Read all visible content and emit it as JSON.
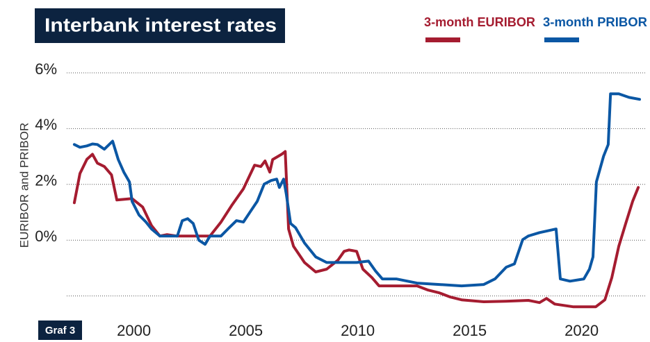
{
  "chart_data": {
    "type": "line",
    "title": "Interbank interest rates",
    "y_label": "EURIBOR and PRIBOR",
    "badge": "Graf 3",
    "xlim": [
      1997,
      2022.9
    ],
    "xticks": [
      2000,
      2005,
      2010,
      2015,
      2020
    ],
    "ylim": [
      -2.5,
      6
    ],
    "yticks": [
      {
        "value": -2,
        "label": null
      },
      {
        "value": 0,
        "label": "0%"
      },
      {
        "value": 2,
        "label": "2%"
      },
      {
        "value": 4,
        "label": "4%"
      },
      {
        "value": 6,
        "label": "6%"
      }
    ],
    "grid": true,
    "legend": "top-right",
    "series": [
      {
        "name": "3-month EURIBOR",
        "color": "#a51c30",
        "x": [
          1997.34,
          1997.59,
          1997.9,
          1998.15,
          1998.37,
          1998.68,
          1999.0,
          1999.24,
          1999.92,
          2000.39,
          2000.79,
          2001.16,
          2001.48,
          2001.91,
          2002.9,
          2003.4,
          2003.89,
          2004.39,
          2004.89,
          2005.39,
          2005.67,
          2005.86,
          2006.07,
          2006.2,
          2006.6,
          2006.76,
          2006.91,
          2007.13,
          2007.62,
          2008.12,
          2008.61,
          2009.11,
          2009.39,
          2009.61,
          2009.95,
          2010.23,
          2010.63,
          2010.95,
          2011.66,
          2012.65,
          2013.15,
          2013.65,
          2014.14,
          2014.64,
          2015.63,
          2016.63,
          2017.62,
          2018.12,
          2018.43,
          2018.8,
          2019.64,
          2020.63,
          2021.04,
          2021.35,
          2021.66,
          2021.97,
          2022.28,
          2022.53
        ],
        "values": [
          1.34,
          2.39,
          2.9,
          3.08,
          2.76,
          2.64,
          2.34,
          1.44,
          1.49,
          1.19,
          0.52,
          0.15,
          0.2,
          0.15,
          0.15,
          0.15,
          0.65,
          1.27,
          1.84,
          2.69,
          2.64,
          2.84,
          2.44,
          2.89,
          3.08,
          3.18,
          0.4,
          -0.22,
          -0.8,
          -1.14,
          -1.04,
          -0.72,
          -0.4,
          -0.35,
          -0.4,
          -1.04,
          -1.34,
          -1.64,
          -1.64,
          -1.64,
          -1.79,
          -1.89,
          -2.04,
          -2.14,
          -2.21,
          -2.19,
          -2.16,
          -2.24,
          -2.09,
          -2.29,
          -2.39,
          -2.39,
          -2.14,
          -1.34,
          -0.22,
          0.6,
          1.39,
          1.89
        ]
      },
      {
        "name": "3-month PRIBOR",
        "color": "#0b57a4",
        "x": [
          1997.34,
          1997.59,
          1997.9,
          1998.15,
          1998.37,
          1998.68,
          1999.05,
          1999.3,
          1999.55,
          1999.8,
          1999.92,
          2000.23,
          2000.54,
          2000.79,
          2001.16,
          2001.94,
          2002.16,
          2002.4,
          2002.65,
          2002.9,
          2003.18,
          2003.4,
          2003.89,
          2004.2,
          2004.58,
          2004.89,
          2005.2,
          2005.51,
          2005.82,
          2006.13,
          2006.38,
          2006.5,
          2006.69,
          2006.81,
          2007.0,
          2007.22,
          2007.62,
          2008.12,
          2008.61,
          2009.24,
          2009.95,
          2010.48,
          2010.79,
          2011.1,
          2011.72,
          2012.65,
          2013.65,
          2014.64,
          2015.63,
          2016.13,
          2016.63,
          2017.0,
          2017.37,
          2017.62,
          2018.12,
          2018.86,
          2019.05,
          2019.48,
          2020.1,
          2020.35,
          2020.51,
          2020.66,
          2020.98,
          2021.19,
          2021.29,
          2021.66,
          2022.12,
          2022.59
        ],
        "values": [
          3.43,
          3.33,
          3.38,
          3.45,
          3.43,
          3.26,
          3.55,
          2.89,
          2.44,
          2.09,
          1.39,
          0.9,
          0.65,
          0.4,
          0.15,
          0.15,
          0.7,
          0.77,
          0.6,
          0,
          -0.15,
          0.15,
          0.15,
          0.4,
          0.7,
          0.65,
          1.02,
          1.39,
          2.01,
          2.14,
          2.19,
          1.89,
          2.19,
          1.64,
          0.6,
          0.45,
          -0.1,
          -0.6,
          -0.8,
          -0.8,
          -0.8,
          -0.75,
          -1.1,
          -1.39,
          -1.39,
          -1.54,
          -1.59,
          -1.64,
          -1.59,
          -1.39,
          -0.97,
          -0.85,
          0.02,
          0.15,
          0.27,
          0.4,
          -1.39,
          -1.47,
          -1.39,
          -1.04,
          -0.6,
          2.09,
          3.01,
          3.43,
          5.25,
          5.25,
          5.12,
          5.05
        ]
      }
    ]
  }
}
